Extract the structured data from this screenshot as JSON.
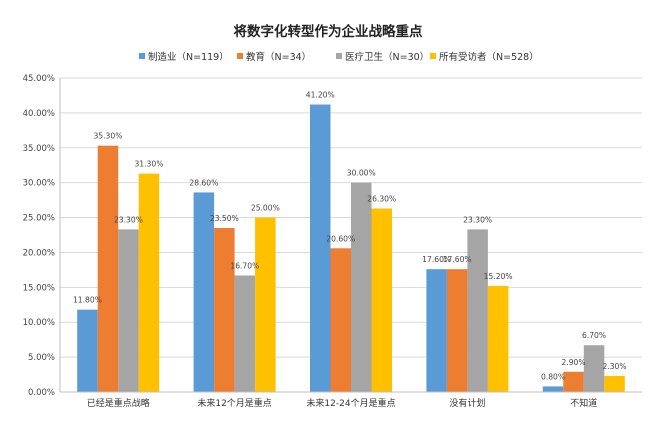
{
  "chart_data": {
    "type": "bar",
    "title": "将数字化转型作为企业战略重点",
    "xlabel": "",
    "ylabel": "",
    "ylim": [
      0,
      45
    ],
    "y_ticks": [
      "0.00%",
      "5.00%",
      "10.00%",
      "15.00%",
      "20.00%",
      "25.00%",
      "30.00%",
      "35.00%",
      "40.00%",
      "45.00%"
    ],
    "y_tick_values": [
      0,
      5,
      10,
      15,
      20,
      25,
      30,
      35,
      40,
      45
    ],
    "grid": true,
    "legend_position": "top-center",
    "categories": [
      "已经是重点战略",
      "未来12个月是重点",
      "未来12-24个月是重点",
      "没有计划",
      "不知道"
    ],
    "series": [
      {
        "name": "制造业（N=119）",
        "color": "#5B9BD5",
        "values": [
          11.8,
          28.6,
          41.2,
          17.6,
          0.8
        ],
        "labels": [
          "11.80%",
          "28.60%",
          "41.20%",
          "17.60%",
          "0.80%"
        ]
      },
      {
        "name": "教育（N=34）",
        "color": "#ED7D31",
        "values": [
          35.3,
          23.5,
          20.6,
          17.6,
          2.9
        ],
        "labels": [
          "35.30%",
          "23.50%",
          "20.60%",
          "17.60%",
          "2.90%"
        ]
      },
      {
        "name": "医疗卫生（N=30）",
        "color": "#A5A5A5",
        "values": [
          23.3,
          16.7,
          30.0,
          23.3,
          6.7
        ],
        "labels": [
          "23.30%",
          "16.70%",
          "30.00%",
          "23.30%",
          "6.70%"
        ]
      },
      {
        "name": "所有受访者（N=528）",
        "color": "#FFC000",
        "values": [
          31.3,
          25.0,
          26.3,
          15.2,
          2.3
        ],
        "labels": [
          "31.30%",
          "25.00%",
          "26.30%",
          "15.20%",
          "2.30%"
        ]
      }
    ]
  }
}
